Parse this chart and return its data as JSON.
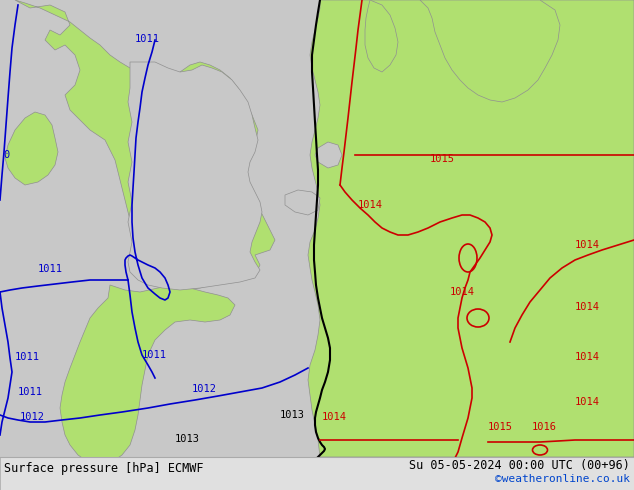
{
  "title_left": "Surface pressure [hPa] ECMWF",
  "title_right": "Su 05-05-2024 00:00 UTC (00+96)",
  "title_right2": "©weatheronline.co.uk",
  "bg_color": "#c8c8c8",
  "land_green": "#b0e070",
  "sea_gray": "#c8c8c8",
  "bottom_bar": "#e0e0e0",
  "blue": "#0000cc",
  "black": "#000000",
  "red": "#cc0000",
  "copyright_blue": "#0044cc",
  "figsize": [
    6.34,
    4.9
  ],
  "dpi": 100
}
